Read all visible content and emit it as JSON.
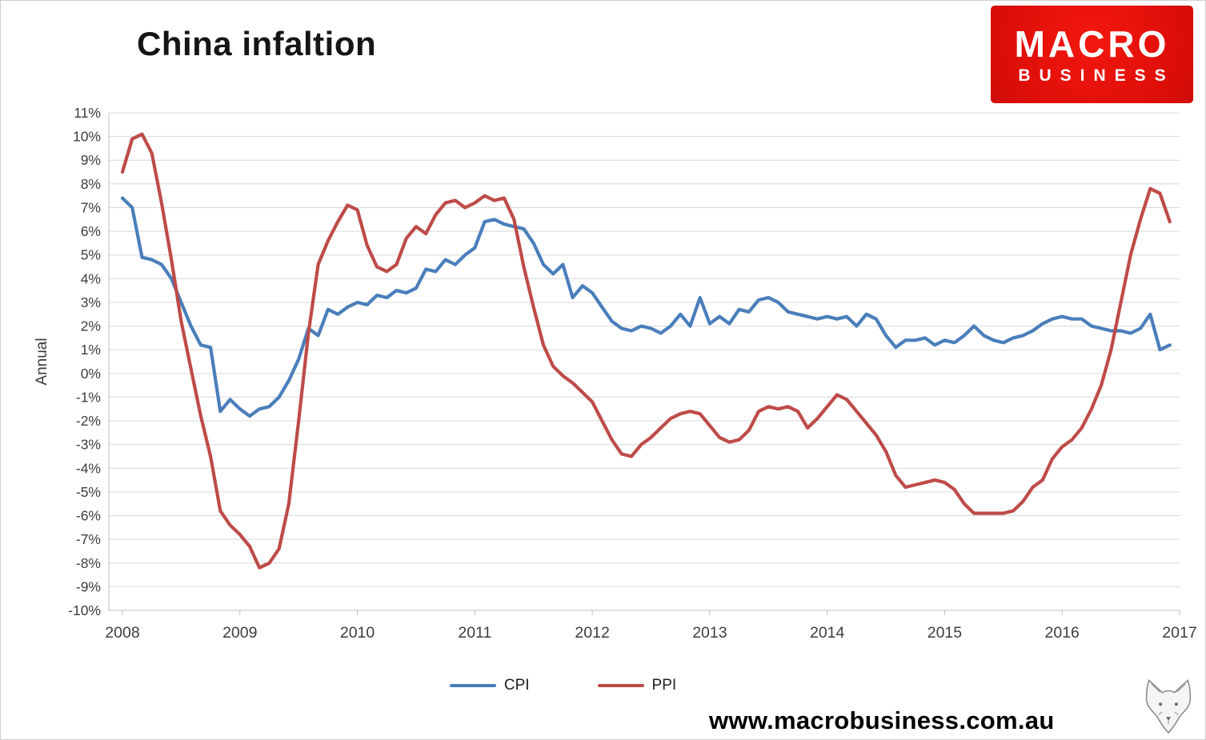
{
  "title": "China infaltion",
  "logo": {
    "line1": "MACRO",
    "line2": "BUSINESS",
    "background_color": "#e81009",
    "text_color": "#ffffff"
  },
  "footer": {
    "url": "www.macrobusiness.com.au"
  },
  "chart_data": {
    "type": "line",
    "title": "China infaltion",
    "xlabel": "",
    "ylabel": "Annual",
    "ylim": [
      -10,
      11
    ],
    "ytick_step": 1,
    "ytick_suffix": "%",
    "grid": true,
    "legend_position": "bottom",
    "grid_color": "#d9d9d9",
    "axis_color": "#bfbfbf",
    "tick_text_color": "#3d3d3d",
    "x_tick_labels": [
      "2008",
      "2009",
      "2010",
      "2011",
      "2012",
      "2013",
      "2014",
      "2015",
      "2016",
      "2017"
    ],
    "y_tick_labels": [
      "11%",
      "10%",
      "9%",
      "8%",
      "7%",
      "6%",
      "5%",
      "4%",
      "3%",
      "2%",
      "1%",
      "0%",
      "-1%",
      "-2%",
      "-3%",
      "-4%",
      "-5%",
      "-6%",
      "-7%",
      "-8%",
      "-9%",
      "-10%"
    ],
    "y_tick_values": [
      11,
      10,
      9,
      8,
      7,
      6,
      5,
      4,
      3,
      2,
      1,
      0,
      -1,
      -2,
      -3,
      -4,
      -5,
      -6,
      -7,
      -8,
      -9,
      -10
    ],
    "x_start_year": 2008,
    "points_per_year": 12,
    "series": [
      {
        "name": "CPI",
        "color": "#4a7ebb",
        "values": [
          7.4,
          7.0,
          4.9,
          4.8,
          4.6,
          4.0,
          3.0,
          2.0,
          1.2,
          1.1,
          -1.6,
          -1.1,
          -1.5,
          -1.8,
          -1.5,
          -1.4,
          -1.0,
          -0.3,
          0.6,
          1.9,
          1.6,
          2.7,
          2.5,
          2.8,
          3.0,
          2.9,
          3.3,
          3.2,
          3.5,
          3.4,
          3.6,
          4.4,
          4.3,
          4.8,
          4.6,
          5.0,
          5.3,
          6.4,
          6.5,
          6.3,
          6.2,
          6.1,
          5.5,
          4.6,
          4.2,
          4.6,
          3.2,
          3.7,
          3.4,
          2.8,
          2.2,
          1.9,
          1.8,
          2.0,
          1.9,
          1.7,
          2.0,
          2.5,
          2.0,
          3.2,
          2.1,
          2.4,
          2.1,
          2.7,
          2.6,
          3.1,
          3.2,
          3.0,
          2.6,
          2.5,
          2.4,
          2.3,
          2.4,
          2.3,
          2.4,
          2.0,
          2.5,
          2.3,
          1.6,
          1.1,
          1.4,
          1.4,
          1.5,
          1.2,
          1.4,
          1.3,
          1.6,
          2.0,
          1.6,
          1.4,
          1.3,
          1.5,
          1.6,
          1.8,
          2.1,
          2.3,
          2.4,
          2.3,
          2.3,
          2.0,
          1.9,
          1.8,
          1.8,
          1.7,
          1.9,
          2.5,
          1.0,
          1.2
        ]
      },
      {
        "name": "PPI",
        "color": "#be4b48",
        "values": [
          8.5,
          9.9,
          10.1,
          9.3,
          7.2,
          4.8,
          2.2,
          0.2,
          -1.8,
          -3.5,
          -5.8,
          -6.4,
          -6.8,
          -7.3,
          -8.2,
          -8.0,
          -7.4,
          -5.5,
          -2.0,
          1.7,
          4.6,
          5.6,
          6.4,
          7.1,
          6.9,
          5.4,
          4.5,
          4.3,
          4.6,
          5.7,
          6.2,
          5.9,
          6.7,
          7.2,
          7.3,
          7.0,
          7.2,
          7.5,
          7.3,
          7.4,
          6.5,
          4.5,
          2.8,
          1.2,
          0.3,
          -0.1,
          -0.4,
          -0.8,
          -1.2,
          -2.0,
          -2.8,
          -3.4,
          -3.5,
          -3.0,
          -2.7,
          -2.3,
          -1.9,
          -1.7,
          -1.6,
          -1.7,
          -2.2,
          -2.7,
          -2.9,
          -2.8,
          -2.4,
          -1.6,
          -1.4,
          -1.5,
          -1.4,
          -1.6,
          -2.3,
          -1.9,
          -1.4,
          -0.9,
          -1.1,
          -1.6,
          -2.1,
          -2.6,
          -3.3,
          -4.3,
          -4.8,
          -4.7,
          -4.6,
          -4.5,
          -4.6,
          -4.9,
          -5.5,
          -5.9,
          -5.9,
          -5.9,
          -5.9,
          -5.8,
          -5.4,
          -4.8,
          -4.5,
          -3.6,
          -3.1,
          -2.8,
          -2.3,
          -1.5,
          -0.5,
          1.0,
          3.0,
          5.0,
          6.5,
          7.8,
          7.6,
          6.4
        ]
      }
    ]
  }
}
